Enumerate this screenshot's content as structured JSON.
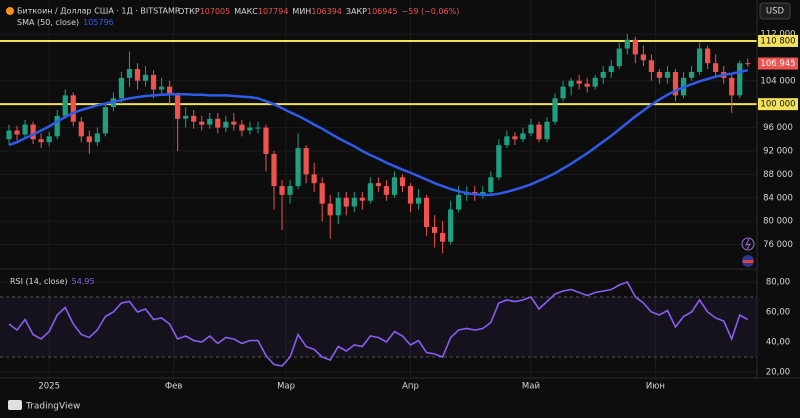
{
  "chart_data": {
    "type": "candlestick",
    "symbol": "Биткоин / Доллар США · 1Д · BITSTAMP",
    "ohlc_labels": [
      "ОТКР",
      "МАКС",
      "МИН",
      "ЗАКР"
    ],
    "change": "−59 (−0,06%)",
    "currency": "USD",
    "brand": "TradingView",
    "up_color": "#1f9e82",
    "down_color": "#ef5350",
    "candles": {
      "open": [
        94000,
        95500,
        94800,
        96500,
        94000,
        93500,
        94500,
        98000,
        101500,
        97000,
        94500,
        93500,
        95000,
        99500,
        101000,
        104500,
        106000,
        104000,
        105000,
        102500,
        103000,
        101500,
        97500,
        98000,
        97000,
        96500,
        97500,
        96000,
        97000,
        96500,
        95500,
        96000,
        96000,
        91500,
        86000,
        84500,
        86000,
        92500,
        88000,
        86500,
        83000,
        81000,
        84000,
        82500,
        84000,
        83500,
        86500,
        86000,
        84500,
        87500,
        86000,
        83000,
        84000,
        79000,
        78000,
        76500,
        82000,
        84500,
        85000,
        84500,
        85000,
        87500,
        93000,
        94500,
        94000,
        95000,
        96500,
        94000,
        97000,
        101000,
        103000,
        104000,
        103500,
        103000,
        104500,
        105500,
        106500,
        109500,
        111000,
        108500,
        107500,
        105500,
        104500,
        105500,
        101500,
        104500,
        105500,
        109500,
        107000,
        105500,
        104500,
        101500,
        107005
      ],
      "high": [
        96500,
        96300,
        97300,
        97000,
        95000,
        95300,
        99000,
        102500,
        102000,
        97800,
        95500,
        96000,
        100200,
        102000,
        105500,
        109000,
        107000,
        106500,
        105800,
        104500,
        104000,
        102000,
        99500,
        99000,
        98000,
        98500,
        98500,
        98000,
        98500,
        97300,
        97000,
        97000,
        96500,
        92000,
        87000,
        87000,
        95000,
        93000,
        90000,
        87500,
        84500,
        85000,
        85000,
        85000,
        85000,
        87500,
        87500,
        87000,
        88500,
        88000,
        86500,
        85500,
        84500,
        81000,
        80000,
        83500,
        86000,
        86000,
        86000,
        86000,
        88500,
        94000,
        95500,
        95200,
        96000,
        97500,
        97000,
        97800,
        101800,
        104000,
        104500,
        105000,
        104500,
        105000,
        106500,
        107500,
        110500,
        112000,
        111500,
        110000,
        108500,
        106000,
        106500,
        106000,
        105500,
        106500,
        110500,
        110000,
        108500,
        106500,
        105000,
        107500,
        107794
      ],
      "low": [
        93000,
        93800,
        94000,
        93200,
        92500,
        92800,
        94000,
        97500,
        96200,
        93500,
        91500,
        92800,
        94500,
        98800,
        100000,
        103000,
        102500,
        103000,
        101000,
        101500,
        100000,
        92000,
        96000,
        95800,
        95500,
        95800,
        95000,
        95200,
        95500,
        94500,
        94800,
        95000,
        88500,
        82000,
        78500,
        83000,
        85500,
        86500,
        85000,
        80000,
        77000,
        79500,
        81000,
        81500,
        82000,
        83000,
        85000,
        83500,
        84000,
        85000,
        81500,
        82000,
        77500,
        75500,
        74500,
        76000,
        81500,
        83500,
        83500,
        83800,
        84500,
        87000,
        92500,
        93000,
        93500,
        94500,
        93500,
        93500,
        96500,
        100500,
        101500,
        102500,
        102000,
        102500,
        103500,
        104500,
        106000,
        108500,
        107000,
        106500,
        104000,
        103500,
        103500,
        100500,
        101000,
        104000,
        105000,
        106000,
        104500,
        103500,
        98500,
        101000,
        106394
      ],
      "close": [
        95500,
        94800,
        96500,
        94000,
        93500,
        94500,
        98000,
        101500,
        97000,
        94500,
        93500,
        95000,
        99500,
        101000,
        104500,
        106000,
        104000,
        105000,
        102500,
        103000,
        101500,
        97500,
        98000,
        97000,
        96500,
        97500,
        96000,
        97000,
        96500,
        95500,
        96000,
        96000,
        91500,
        86000,
        84500,
        86000,
        92500,
        88000,
        86500,
        83000,
        81000,
        84000,
        82500,
        84000,
        83500,
        86500,
        86000,
        84500,
        87500,
        86000,
        83000,
        84000,
        79000,
        78000,
        76500,
        82000,
        84500,
        85000,
        84500,
        85000,
        87500,
        93000,
        94500,
        94000,
        95000,
        96500,
        94000,
        97000,
        101000,
        103000,
        104000,
        103500,
        103000,
        104500,
        105500,
        106500,
        109500,
        111000,
        108500,
        107500,
        105500,
        104500,
        105500,
        101500,
        104500,
        105500,
        109500,
        107000,
        105500,
        104500,
        101500,
        107005,
        106945
      ]
    },
    "sma": {
      "name": "SMA (50, close)",
      "color": "#2f5bea",
      "values": [
        93000,
        93500,
        94200,
        94800,
        95500,
        96200,
        97000,
        97800,
        98500,
        99000,
        99400,
        99800,
        100100,
        100400,
        100700,
        101000,
        101200,
        101400,
        101500,
        101600,
        101700,
        101700,
        101700,
        101600,
        101600,
        101500,
        101500,
        101500,
        101400,
        101300,
        101200,
        101000,
        100500,
        100000,
        99300,
        98600,
        98000,
        97300,
        96500,
        95800,
        95000,
        94200,
        93500,
        92800,
        92000,
        91300,
        90700,
        90000,
        89400,
        88800,
        88300,
        87700,
        87100,
        86500,
        86000,
        85500,
        85100,
        84800,
        84600,
        84500,
        84500,
        84700,
        85000,
        85400,
        85800,
        86300,
        86900,
        87500,
        88200,
        89000,
        89800,
        90700,
        91600,
        92600,
        93600,
        94600,
        95700,
        96800,
        97900,
        98900,
        99900,
        100800,
        101600,
        102300,
        102900,
        103400,
        103900,
        104300,
        104700,
        105000,
        105200,
        105500,
        105796
      ]
    },
    "hlines": [
      {
        "value": 110800,
        "label": "110 800",
        "color": "#f2e15b"
      },
      {
        "value": 100000,
        "label": "100 000",
        "color": "#f2e15b"
      }
    ],
    "last_price": {
      "value": 106945,
      "label": "106 945",
      "color": "#ef5350"
    },
    "xlim": [
      -0.5,
      92.9
    ],
    "xticks": [
      {
        "value": 5,
        "label": "2025"
      },
      {
        "value": 20.5,
        "label": "Фев"
      },
      {
        "value": 34.5,
        "label": "Мар"
      },
      {
        "value": 50,
        "label": "Апр"
      },
      {
        "value": 65,
        "label": "Май"
      },
      {
        "value": 80.5,
        "label": "Июн"
      }
    ],
    "ylim": [
      72000,
      117800
    ],
    "yticks": [
      {
        "value": 76000,
        "label": "76 000"
      },
      {
        "value": 80000,
        "label": "80 000"
      },
      {
        "value": 84000,
        "label": "84 000"
      },
      {
        "value": 88000,
        "label": "88 000"
      },
      {
        "value": 92000,
        "label": "92 000"
      },
      {
        "value": 96000,
        "label": "96 000"
      },
      {
        "value": 104000,
        "label": "104 000"
      },
      {
        "value": 112000,
        "label": "112 000"
      }
    ],
    "grid": true,
    "rsi": {
      "name": "RSI (14, close)",
      "color": "#8a5cf0",
      "last_label": "54,95",
      "values": [
        52,
        48,
        55,
        45,
        42,
        47,
        58,
        63,
        52,
        45,
        43,
        48,
        57,
        60,
        66,
        67,
        60,
        62,
        55,
        56,
        52,
        42,
        44,
        41,
        40,
        44,
        39,
        43,
        42,
        39,
        41,
        41,
        31,
        25,
        24,
        30,
        45,
        37,
        35,
        30,
        28,
        37,
        34,
        38,
        37,
        44,
        43,
        40,
        47,
        44,
        38,
        41,
        33,
        32,
        30,
        43,
        48,
        49,
        48,
        49,
        53,
        66,
        68,
        67,
        68,
        70,
        62,
        67,
        72,
        74,
        75,
        73,
        71,
        73,
        74,
        75,
        78,
        80,
        70,
        66,
        60,
        58,
        61,
        50,
        57,
        60,
        68,
        60,
        56,
        54,
        42,
        58,
        54.95
      ],
      "ylim": [
        16,
        88
      ],
      "yticks": [
        {
          "value": 20,
          "label": "20,00"
        },
        {
          "value": 40,
          "label": "40,00"
        },
        {
          "value": 60,
          "label": "60,00"
        },
        {
          "value": 80,
          "label": "80,00"
        }
      ],
      "band": [
        30,
        70
      ]
    }
  }
}
